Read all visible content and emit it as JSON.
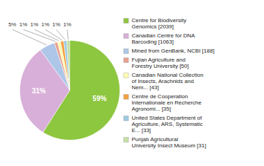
{
  "chart_data": {
    "type": "pie",
    "categories": [
      "Centre for Biodiversity\nGenomics [2039]",
      "Canadian Centre for DNA\nBarcoding [1063]",
      "Mined from GenBank, NCBI [188]",
      "Fujian Agriculture and\nForestry University [50]",
      "Canadian National Collection\nof Insects, Arachnids and\nNem... [43]",
      "Centre de Cooperation\nInternationale en Recherche\nAgronomi... [35]",
      "United States Department of\nAgriculture, ARS, Systematic\nE... [33]",
      "Punjab Agricultural\nUniversity Insect Museum [31]"
    ],
    "values": [
      59,
      31,
      5,
      1,
      1,
      1,
      1,
      1
    ],
    "value_labels": [
      "59%",
      "31%",
      "5%",
      "1%",
      "1%",
      "1%",
      "1%",
      "1%"
    ],
    "colors": [
      "#8dc63f",
      "#d8afd8",
      "#aec6e8",
      "#e8a090",
      "#ffffb3",
      "#f4a040",
      "#9ecae1",
      "#c5e0a5"
    ],
    "data_labels": true,
    "legend": "right"
  }
}
